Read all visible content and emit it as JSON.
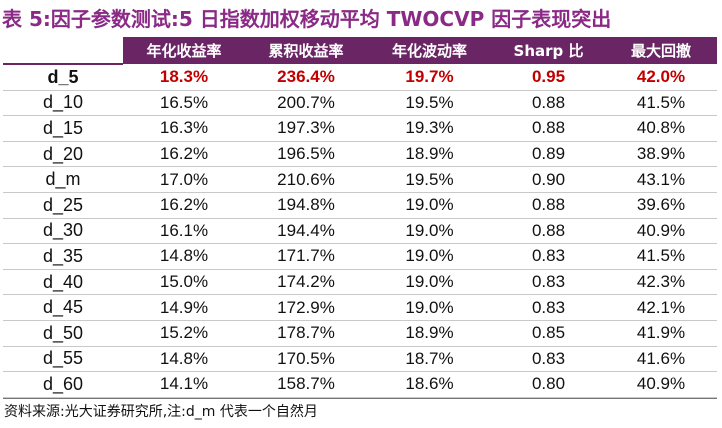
{
  "title": {
    "prefix": "表 5",
    "colon": ":",
    "text": "因子参数测试:5 日指数加权移动平均 TWOCVP 因子表现突出"
  },
  "table": {
    "headers": [
      "",
      "年化收益率",
      "累积收益率",
      "年化波动率",
      "Sharp 比",
      "最大回撤"
    ],
    "rows": [
      [
        "d_5",
        "18.3%",
        "236.4%",
        "19.7%",
        "0.95",
        "42.0%"
      ],
      [
        "d_10",
        "16.5%",
        "200.7%",
        "19.5%",
        "0.88",
        "41.5%"
      ],
      [
        "d_15",
        "16.3%",
        "197.3%",
        "19.3%",
        "0.88",
        "40.8%"
      ],
      [
        "d_20",
        "16.2%",
        "196.5%",
        "18.9%",
        "0.89",
        "38.9%"
      ],
      [
        "d_m",
        "17.0%",
        "210.6%",
        "19.5%",
        "0.90",
        "43.1%"
      ],
      [
        "d_25",
        "16.2%",
        "194.8%",
        "19.0%",
        "0.88",
        "39.6%"
      ],
      [
        "d_30",
        "16.1%",
        "194.4%",
        "19.0%",
        "0.88",
        "40.9%"
      ],
      [
        "d_35",
        "14.8%",
        "171.7%",
        "19.0%",
        "0.83",
        "41.5%"
      ],
      [
        "d_40",
        "15.0%",
        "174.2%",
        "19.0%",
        "0.83",
        "42.3%"
      ],
      [
        "d_45",
        "14.9%",
        "172.9%",
        "19.0%",
        "0.83",
        "42.1%"
      ],
      [
        "d_50",
        "15.2%",
        "178.7%",
        "18.9%",
        "0.85",
        "41.9%"
      ],
      [
        "d_55",
        "14.8%",
        "170.5%",
        "18.7%",
        "0.83",
        "41.6%"
      ],
      [
        "d_60",
        "14.1%",
        "158.7%",
        "18.6%",
        "0.80",
        "40.9%"
      ]
    ],
    "highlighted_row": 0,
    "highlight_color": "#c00000",
    "header_color": "#6a2565"
  },
  "source": "资料来源:光大证券研究所,注:d_m 代表一个自然月"
}
